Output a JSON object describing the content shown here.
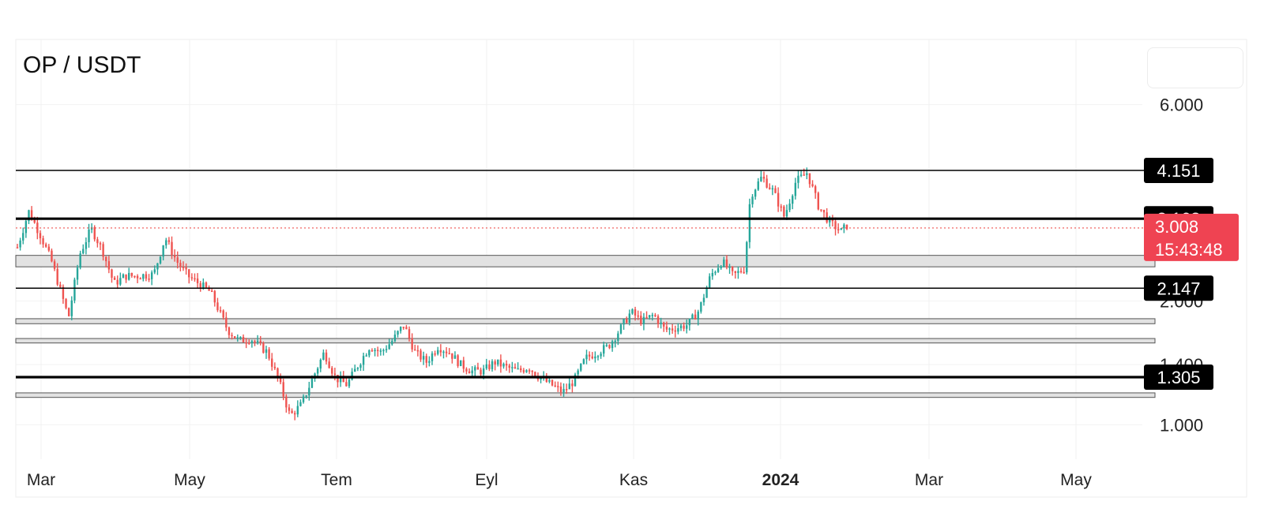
{
  "chart_data": {
    "type": "candlestick",
    "title": "OP / USDT",
    "y_scale": "log",
    "ylim": [
      0.85,
      7.5
    ],
    "y_ticks": [
      "1.000",
      "1.400",
      "2.000",
      "6.000"
    ],
    "x_ticks": [
      {
        "label": "Mar",
        "bold": false
      },
      {
        "label": "May",
        "bold": false
      },
      {
        "label": "Tem",
        "bold": false
      },
      {
        "label": "Eyl",
        "bold": false
      },
      {
        "label": "Kas",
        "bold": false
      },
      {
        "label": "2024",
        "bold": true
      },
      {
        "label": "Mar",
        "bold": false
      },
      {
        "label": "May",
        "bold": false
      }
    ],
    "levels": [
      {
        "value": 4.151,
        "label": "4.151",
        "weight": "thin"
      },
      {
        "value": 3.168,
        "label": "3.168",
        "weight": "thick"
      },
      {
        "value": 2.147,
        "label": "2.147",
        "weight": "thin"
      },
      {
        "value": 1.305,
        "label": "1.305",
        "weight": "thick"
      }
    ],
    "zones": [
      [
        2.42,
        2.58
      ],
      [
        1.76,
        1.81
      ],
      [
        1.58,
        1.62
      ],
      [
        1.165,
        1.195
      ]
    ],
    "current_price": {
      "value": 3.008,
      "label": "3.008",
      "countdown": "15:43:48"
    },
    "price_path": [
      [
        0,
        2.7
      ],
      [
        2,
        3.3
      ],
      [
        4,
        2.9
      ],
      [
        6,
        2.5
      ],
      [
        9,
        1.82
      ],
      [
        11,
        2.6
      ],
      [
        13,
        3.0
      ],
      [
        15,
        2.65
      ],
      [
        17,
        2.2
      ],
      [
        19,
        2.3
      ],
      [
        21,
        2.3
      ],
      [
        24,
        2.32
      ],
      [
        26,
        2.85
      ],
      [
        28,
        2.5
      ],
      [
        30,
        2.3
      ],
      [
        32,
        2.2
      ],
      [
        34,
        2.1
      ],
      [
        37,
        1.7
      ],
      [
        39,
        1.6
      ],
      [
        41,
        1.62
      ],
      [
        44,
        1.5
      ],
      [
        46,
        1.28
      ],
      [
        48,
        1.05
      ],
      [
        50,
        1.12
      ],
      [
        52,
        1.3
      ],
      [
        54,
        1.5
      ],
      [
        56,
        1.3
      ],
      [
        58,
        1.25
      ],
      [
        60,
        1.4
      ],
      [
        62,
        1.55
      ],
      [
        64,
        1.5
      ],
      [
        66,
        1.6
      ],
      [
        68,
        1.75
      ],
      [
        70,
        1.5
      ],
      [
        72,
        1.42
      ],
      [
        74,
        1.55
      ],
      [
        76,
        1.5
      ],
      [
        78,
        1.4
      ],
      [
        80,
        1.35
      ],
      [
        82,
        1.35
      ],
      [
        84,
        1.42
      ],
      [
        86,
        1.38
      ],
      [
        88,
        1.35
      ],
      [
        90,
        1.38
      ],
      [
        92,
        1.3
      ],
      [
        94,
        1.25
      ],
      [
        96,
        1.2
      ],
      [
        98,
        1.28
      ],
      [
        100,
        1.45
      ],
      [
        102,
        1.5
      ],
      [
        104,
        1.55
      ],
      [
        106,
        1.7
      ],
      [
        108,
        1.88
      ],
      [
        110,
        1.78
      ],
      [
        112,
        1.85
      ],
      [
        114,
        1.7
      ],
      [
        116,
        1.72
      ],
      [
        118,
        1.75
      ],
      [
        120,
        1.9
      ],
      [
        122,
        2.3
      ],
      [
        124,
        2.5
      ],
      [
        126,
        2.3
      ],
      [
        128,
        2.4
      ],
      [
        129,
        3.6
      ],
      [
        131,
        4.0
      ],
      [
        133,
        3.7
      ],
      [
        135,
        3.2
      ],
      [
        137,
        3.9
      ],
      [
        139,
        4.1
      ],
      [
        141,
        3.4
      ],
      [
        143,
        3.1
      ],
      [
        145,
        2.95
      ],
      [
        146,
        3.05
      ]
    ]
  }
}
